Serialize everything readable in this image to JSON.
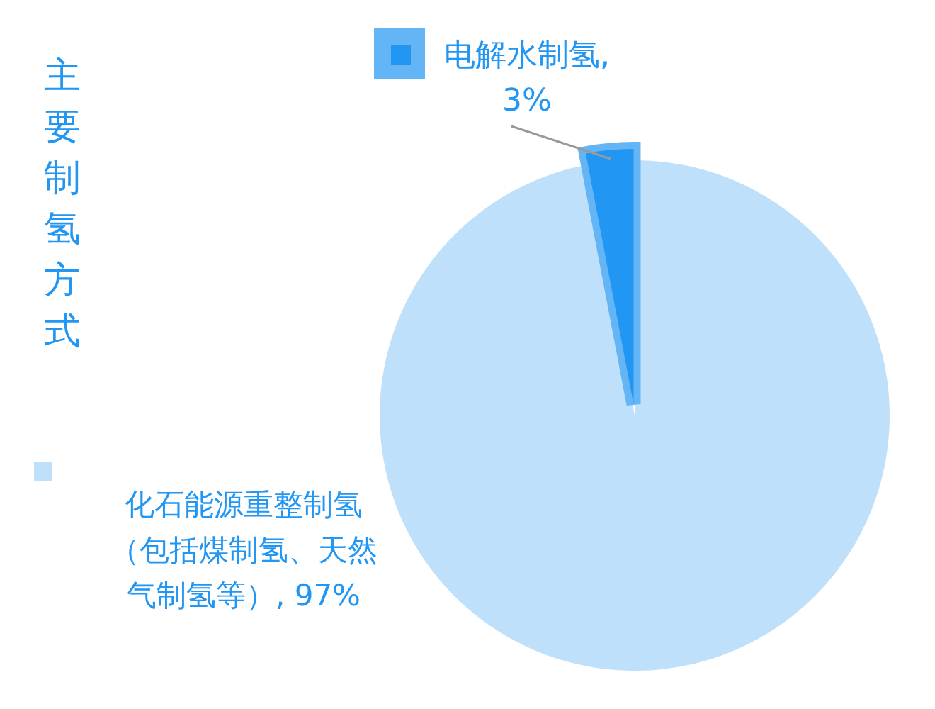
{
  "chart_data": {
    "type": "pie",
    "title": "主要制氢方式",
    "categories": [
      "化石能源重整制氢（包括煤制氢、天然气制氢等）",
      "电解水制氢"
    ],
    "values": [
      97,
      3
    ],
    "colors": [
      "#bfe0fb",
      "#2196f3"
    ],
    "value_labels": [
      ", 97%",
      ", 3%"
    ]
  }
}
